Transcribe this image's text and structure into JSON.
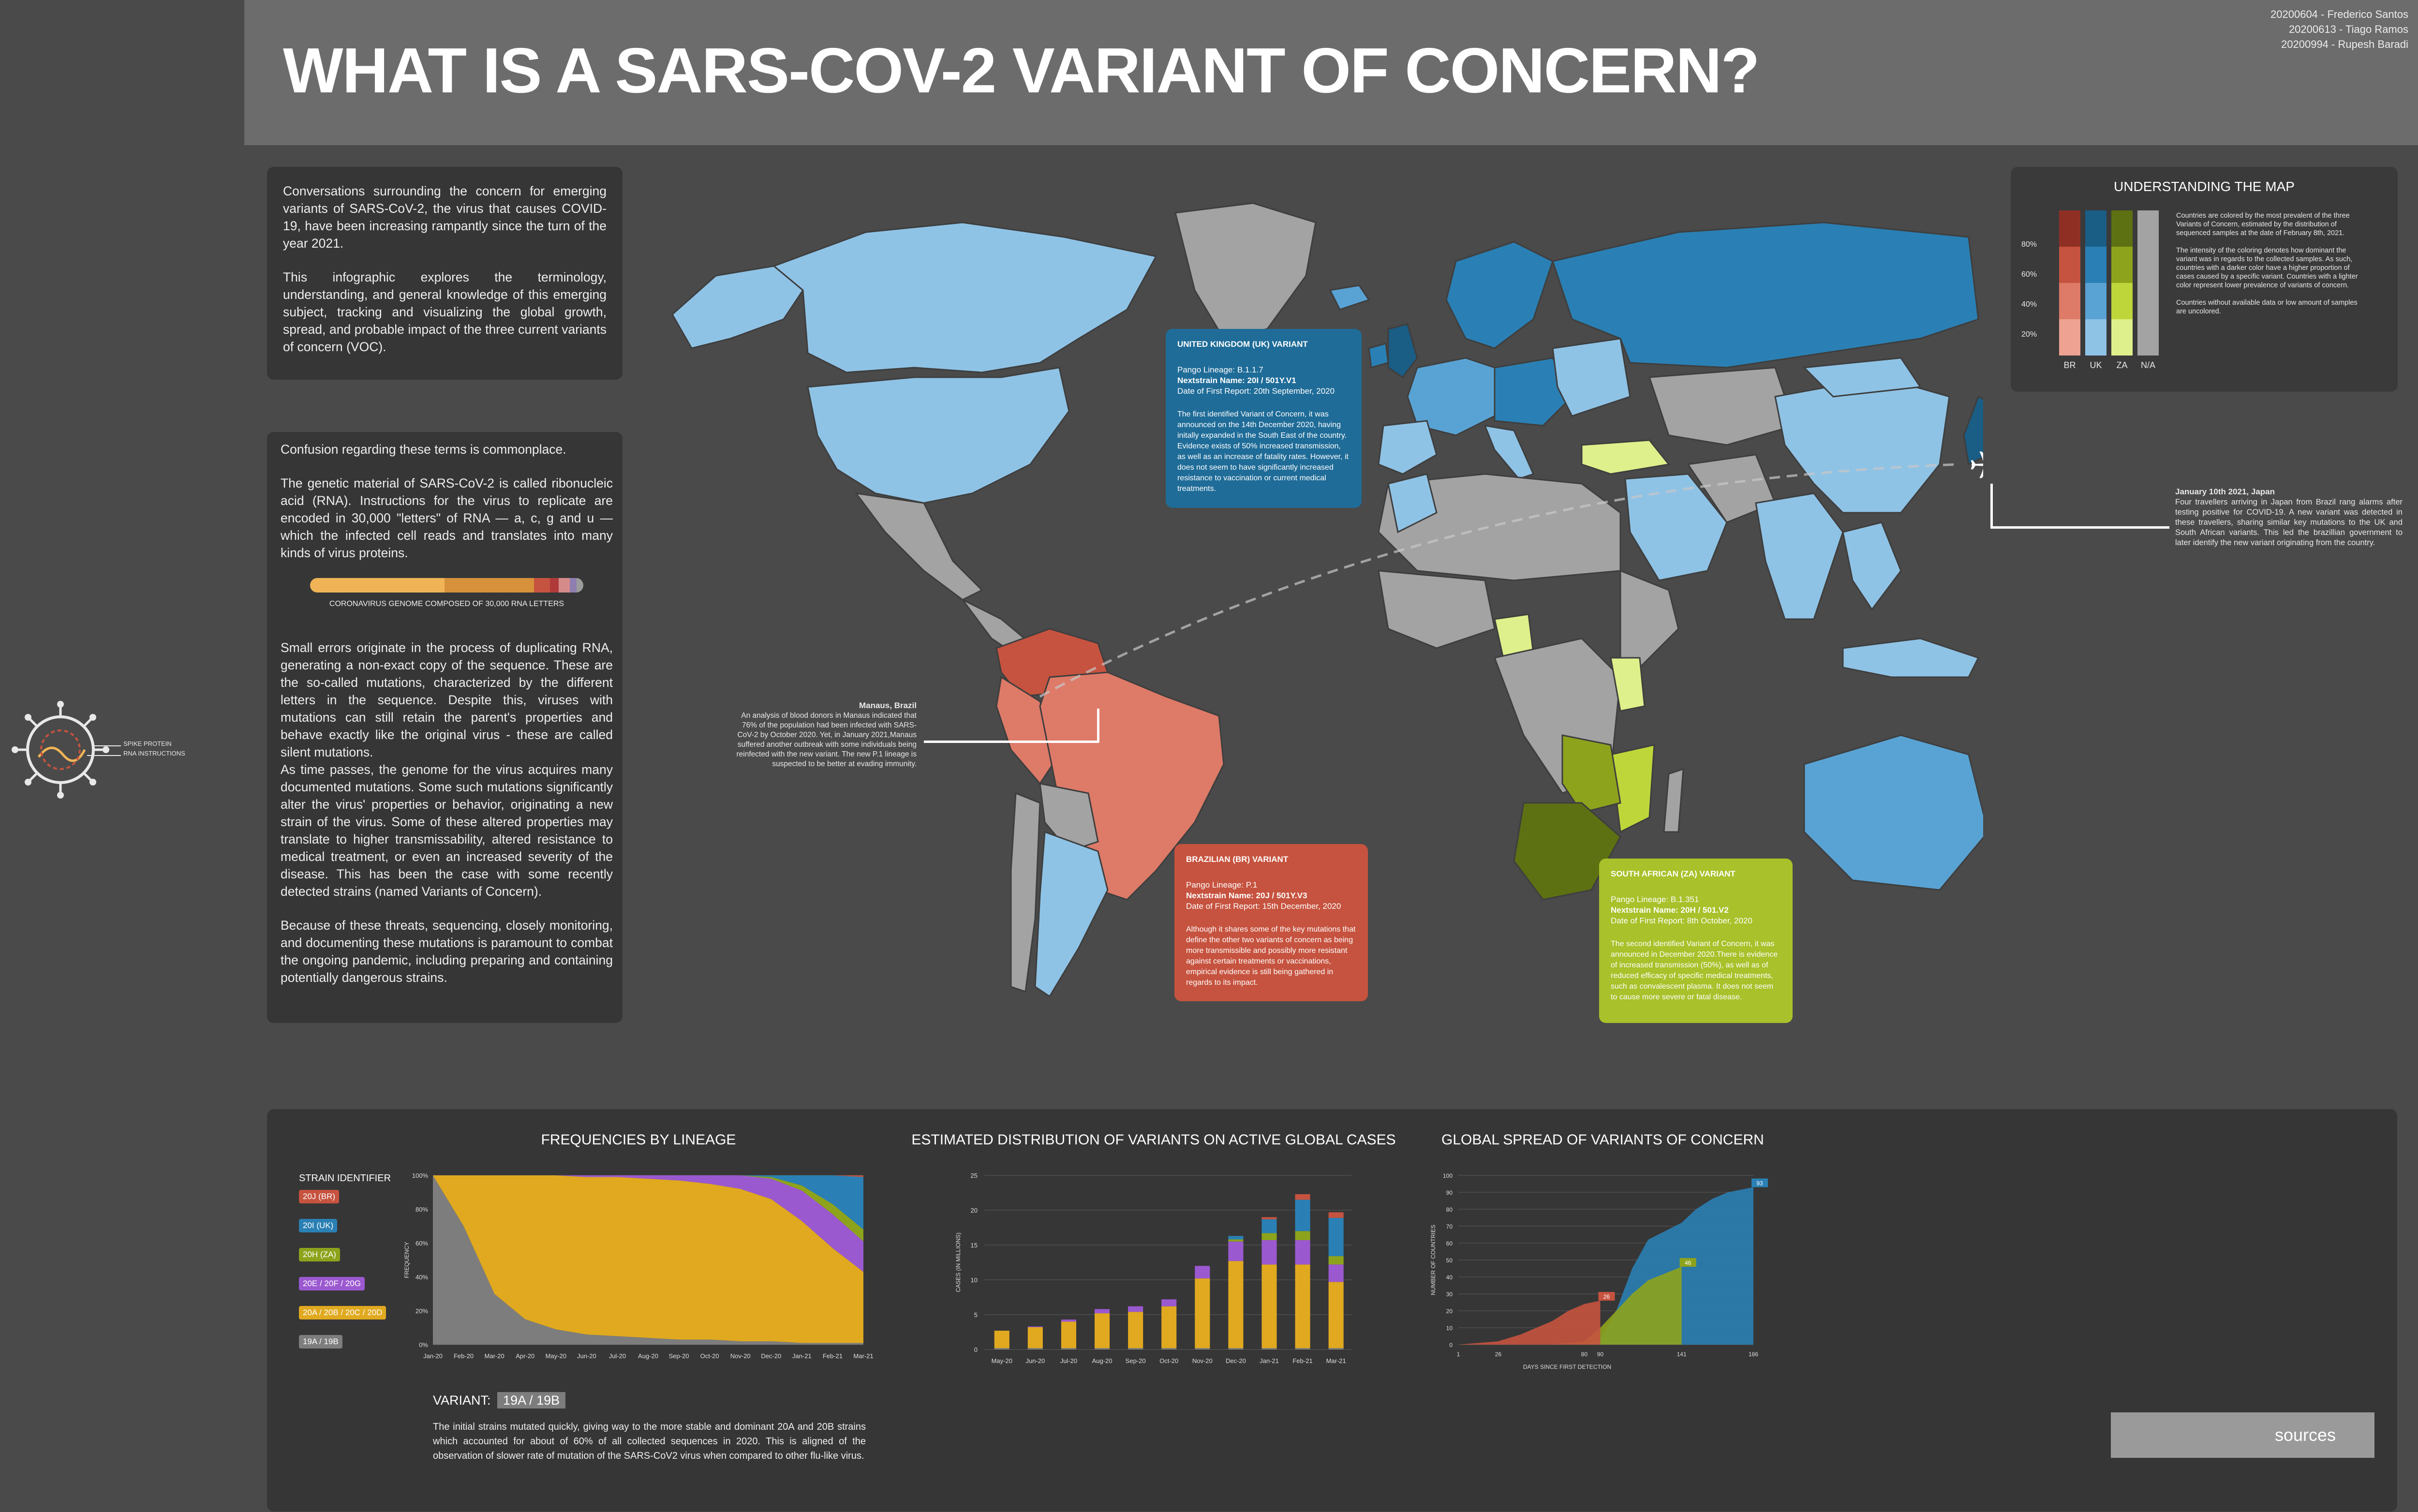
{
  "header": {
    "title": "WHAT IS A SARS-COV-2 VARIANT OF CONCERN?",
    "credits": [
      "20200604 - Frederico Santos",
      "20200613 - Tiago Ramos",
      "20200994 - Rupesh Baradi"
    ]
  },
  "intro": {
    "p1": "Conversations surrounding the concern for emerging variants of SARS-CoV-2, the virus that causes COVID-19, have been increasing rampantly since the turn of the year 2021.",
    "p2": "This infographic explores the terminology, understanding, and general knowledge of this emerging subject, tracking and visualizing the global growth, spread, and probable impact of the three current variants of concern (VOC)."
  },
  "explainer": {
    "p1": "Confusion regarding these terms is commonplace.",
    "p2": "The genetic material of SARS-CoV-2 is called ribonucleic acid (RNA). Instructions for the virus to replicate are encoded in 30,000 \"letters\" of RNA — a, c, g and u — which the infected cell reads and translates into many kinds of virus proteins.",
    "genome_caption": "CORONAVIRUS GENOME COMPOSED OF 30,000 RNA LETTERS",
    "p3": "Small errors originate in the process of duplicating RNA, generating a non-exact copy of the sequence. These are the so-called mutations, characterized by the different letters in the sequence. Despite this, viruses with mutations can still retain the parent's properties and behave exactly like the original virus - these are called silent mutations.",
    "p4": "As time passes, the genome for the virus acquires many documented mutations. Some such mutations significantly alter the virus' properties or behavior, originating a new strain of the virus. Some of these altered properties may translate to higher transmissability, altered resistance to medical treatment, or even an increased severity of the disease. This has been the case with some recently detected strains (named Variants of Concern).",
    "p5": "Because of these threats, sequencing, closely monitoring, and documenting these mutations is paramount to combat the ongoing pandemic, including preparing and containing potentially dangerous strains."
  },
  "virus_labels": [
    "SPIKE PROTEIN",
    "RNA INSTRUCTIONS"
  ],
  "map_legend": {
    "title": "UNDERSTANDING THE MAP",
    "levels": [
      "80%",
      "60%",
      "40%",
      "20%"
    ],
    "columns": [
      "BR",
      "UK",
      "ZA",
      "N/A"
    ],
    "colors": {
      "BR": [
        "#8f2f24",
        "#c6533f",
        "#de7a68",
        "#eda292"
      ],
      "UK": [
        "#1a5d85",
        "#2a80b4",
        "#59a3d4",
        "#8fc3e6"
      ],
      "ZA": [
        "#5d7112",
        "#8ea31c",
        "#bfd63b",
        "#def08b"
      ],
      "NA": [
        "#a3a3a3",
        "#a3a3a3",
        "#a3a3a3",
        "#a3a3a3"
      ]
    },
    "p1": "Countries are colored by the most prevalent of the three Variants of Concern, estimated by the distribution of sequenced samples at the date of February 8th, 2021.",
    "p2": "The intensity of the coloring denotes how dominant the variant was in regards to the collected samples. As such, countries with a darker color have a higher proportion of cases caused by a specific variant. Countries with a lighter color represent lower prevalence of variants of concern.",
    "p3": "Countries without available data or low amount of samples are uncolored."
  },
  "uk_card": {
    "title": "UNITED KINGDOM (UK) VARIANT",
    "meta": [
      "Pango Lineage: B.1.1.7",
      "Nextstrain Name: 20I / 501Y.V1",
      "Date of First Report: 20th September, 2020"
    ],
    "desc": "The first identified Variant of Concern, it was announced on the 14th December 2020, having initally expanded in the South East of the country. Evidence exists of 50% increased transmission, as well as an increase of fatality rates. However, it does not seem to have significantly increased resistance to vaccination or current medical treatments."
  },
  "br_card": {
    "title": "BRAZILIAN (BR) VARIANT",
    "meta": [
      "Pango Lineage: P.1",
      "Nextstrain Name: 20J / 501Y.V3",
      "Date of First Report: 15th December, 2020"
    ],
    "desc": "Although it shares some of the key mutations that define the other two variants of concern as being more transmissible and possibly more resistant against certain treatments or vaccinations, empirical evidence is still being gathered in regards to its impact."
  },
  "za_card": {
    "title": "SOUTH AFRICAN (ZA) VARIANT",
    "meta": [
      "Pango Lineage: B.1.351",
      "Nextstrain Name: 20H / 501.V2",
      "Date of First Report: 8th October, 2020"
    ],
    "desc": "The second identified Variant of Concern, it was announced in December 2020.There is evidence of increased transmission (50%), as well as of reduced efficacy of specific medical treatments, such as convalescent plasma. It does not seem to cause more severe or fatal disease."
  },
  "manaus": {
    "title": "Manaus, Brazil",
    "text": "An analysis of blood donors in Manaus indicated that 76% of the population had been infected with SARS-CoV-2 by October 2020. Yet, in January 2021,Manaus suffered another outbreak with some individuals being reinfected with the new variant. The new P.1 lineage is suspected to be better at evading immunity."
  },
  "japan": {
    "title": "January 10th 2021, Japan",
    "text": "Four travellers arriving in Japan from Brazil rang alarms after testing positive for COVID-19. A new variant was detected in these travellers, sharing similar key mutations to the UK and South African variants. This led the brazillian government to later identify the new variant originating from the country."
  },
  "bottom": {
    "freq_title": "FREQUENCIES BY LINEAGE",
    "dist_title": "ESTIMATED DISTRIBUTION OF VARIANTS ON ACTIVE GLOBAL CASES",
    "spread_title": "GLOBAL SPREAD OF VARIANTS OF CONCERN",
    "strain_header": "STRAIN IDENTIFIER",
    "strains": [
      {
        "label": "20J (BR)",
        "color": "#c6533f"
      },
      {
        "label": "20I (UK)",
        "color": "#2a80b4"
      },
      {
        "label": "20H (ZA)",
        "color": "#8ea31c"
      },
      {
        "label": "20E / 20F / 20G",
        "color": "#9b59d0"
      },
      {
        "label": "20A / 20B / 20C / 20D",
        "color": "#e0a91f"
      },
      {
        "label": "19A / 19B",
        "color": "#7d7d7d"
      }
    ],
    "variant_label": "VARIANT:",
    "variant_value": "19A / 19B",
    "variant_desc": "The initial strains mutated quickly, giving way to the more stable and dominant 20A and 20B strains which  accounted for about of 60% of all collected sequences in 2020. This is aligned of the observation of slower rate of mutation of the SARS-CoV2 virus when compared to other flu-like virus.",
    "sources": "sources"
  },
  "chart_data": [
    {
      "type": "area",
      "title": "FREQUENCIES BY LINEAGE",
      "xlabel": "",
      "ylabel": "FREQUENCY",
      "x": [
        "Jan-20",
        "Feb-20",
        "Mar-20",
        "Apr-20",
        "May-20",
        "Jun-20",
        "Jul-20",
        "Aug-20",
        "Sep-20",
        "Oct-20",
        "Nov-20",
        "Dec-20",
        "Jan-21",
        "Feb-21",
        "Mar-21"
      ],
      "ylim": [
        0,
        100
      ],
      "yticks": [
        "0%",
        "20%",
        "40%",
        "60%",
        "80%",
        "100%"
      ],
      "series": [
        {
          "name": "19A / 19B",
          "color": "#7d7d7d",
          "values": [
            100,
            70,
            30,
            15,
            9,
            6,
            5,
            4,
            3,
            3,
            2,
            2,
            1,
            1,
            1
          ]
        },
        {
          "name": "20A / 20B / 20C / 20D",
          "color": "#e0a91f",
          "values": [
            0,
            30,
            70,
            85,
            91,
            93,
            94,
            94,
            94,
            92,
            90,
            84,
            72,
            56,
            42
          ]
        },
        {
          "name": "20E / 20F / 20G",
          "color": "#9b59d0",
          "values": [
            0,
            0,
            0,
            0,
            0,
            1,
            1,
            2,
            3,
            5,
            8,
            12,
            18,
            20,
            18
          ]
        },
        {
          "name": "20H (ZA)",
          "color": "#8ea31c",
          "values": [
            0,
            0,
            0,
            0,
            0,
            0,
            0,
            0,
            0,
            0,
            0,
            1,
            3,
            6,
            7
          ]
        },
        {
          "name": "20I (UK)",
          "color": "#2a80b4",
          "values": [
            0,
            0,
            0,
            0,
            0,
            0,
            0,
            0,
            0,
            0,
            0,
            1,
            6,
            17,
            31
          ]
        },
        {
          "name": "20J (BR)",
          "color": "#c6533f",
          "values": [
            0,
            0,
            0,
            0,
            0,
            0,
            0,
            0,
            0,
            0,
            0,
            0,
            0,
            0,
            1
          ]
        }
      ]
    },
    {
      "type": "bar",
      "title": "ESTIMATED DISTRIBUTION OF VARIANTS ON ACTIVE GLOBAL CASES",
      "xlabel": "",
      "ylabel": "CASES (IN MILLIONS)",
      "categories": [
        "May-20",
        "Jun-20",
        "Jul-20",
        "Aug-20",
        "Sep-20",
        "Oct-20",
        "Nov-20",
        "Dec-20",
        "Jan-21",
        "Feb-21",
        "Mar-21"
      ],
      "ylim": [
        0,
        25
      ],
      "yticks": [
        0,
        5,
        10,
        15,
        20,
        25
      ],
      "series": [
        {
          "name": "19A / 19B",
          "color": "#7d7d7d",
          "values": [
            0.2,
            0.2,
            0.2,
            0.2,
            0.2,
            0.2,
            0.2,
            0.2,
            0.2,
            0.2,
            0.2
          ]
        },
        {
          "name": "20A / 20B / 20C / 20D",
          "color": "#e0a91f",
          "values": [
            2.5,
            3.0,
            3.8,
            5.0,
            5.2,
            6.0,
            10.0,
            12.5,
            12.0,
            12.0,
            9.5
          ]
        },
        {
          "name": "20E / 20F / 20G",
          "color": "#9b59d0",
          "values": [
            0.0,
            0.1,
            0.3,
            0.6,
            0.8,
            1.0,
            1.8,
            2.8,
            3.5,
            3.5,
            2.5
          ]
        },
        {
          "name": "20H (ZA)",
          "color": "#8ea31c",
          "values": [
            0,
            0,
            0,
            0,
            0,
            0,
            0,
            0.3,
            1.0,
            1.3,
            1.2
          ]
        },
        {
          "name": "20I (UK)",
          "color": "#2a80b4",
          "values": [
            0,
            0,
            0,
            0,
            0,
            0,
            0,
            0.5,
            2.0,
            4.5,
            5.5
          ]
        },
        {
          "name": "20J (BR)",
          "color": "#c6533f",
          "values": [
            0,
            0,
            0,
            0,
            0,
            0,
            0,
            0,
            0.3,
            0.8,
            0.8
          ]
        }
      ]
    },
    {
      "type": "area",
      "title": "GLOBAL SPREAD OF VARIANTS OF CONCERN",
      "xlabel": "DAYS SINCE FIRST DETECTION",
      "ylabel": "NUMBER OF COUNTRIES",
      "xticks": [
        1,
        26,
        80,
        90,
        141,
        186
      ],
      "ylim": [
        0,
        100
      ],
      "yticks": [
        0,
        10,
        20,
        30,
        40,
        50,
        60,
        70,
        80,
        90,
        100
      ],
      "series": [
        {
          "name": "20I (UK)",
          "color": "#2a80b4",
          "x": [
            1,
            26,
            60,
            80,
            90,
            100,
            110,
            120,
            141,
            150,
            160,
            170,
            186
          ],
          "y": [
            0,
            0,
            0,
            0,
            3,
            20,
            45,
            62,
            72,
            80,
            86,
            90,
            93
          ],
          "end_label": "93"
        },
        {
          "name": "20H (ZA)",
          "color": "#8ea31c",
          "x": [
            1,
            26,
            60,
            80,
            90,
            100,
            110,
            120,
            141
          ],
          "y": [
            0,
            0,
            0,
            2,
            10,
            20,
            30,
            38,
            46
          ],
          "end_label": "46"
        },
        {
          "name": "20J (BR)",
          "color": "#c6533f",
          "x": [
            1,
            26,
            40,
            60,
            70,
            80,
            90
          ],
          "y": [
            0,
            2,
            6,
            14,
            20,
            24,
            26
          ],
          "end_label": "26"
        }
      ]
    }
  ]
}
